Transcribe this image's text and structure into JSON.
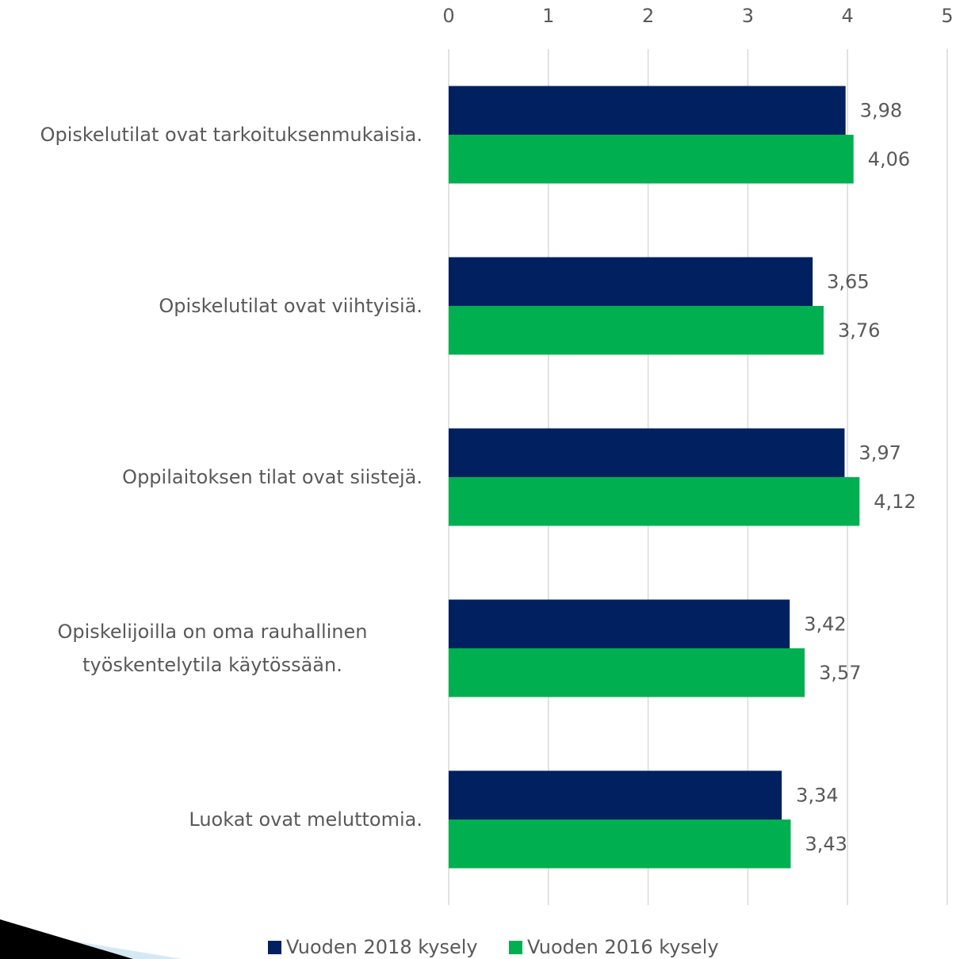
{
  "chart_data": {
    "type": "bar",
    "orientation": "horizontal",
    "categories": [
      "Opiskelutilat ovat tarkoituksenmukaisia.",
      "Opiskelutilat ovat viihtyisiä.",
      "Oppilaitoksen tilat ovat siistejä.",
      "Opiskelijoilla on oma rauhallinen työskentelytila käytössään.",
      "Luokat ovat meluttomia."
    ],
    "series": [
      {
        "name": "Vuoden 2018 kysely",
        "color": "#002060",
        "values": [
          3.98,
          3.65,
          3.97,
          3.42,
          3.34
        ],
        "value_labels": [
          "3,98",
          "3,65",
          "3,97",
          "3,42",
          "3,34"
        ]
      },
      {
        "name": "Vuoden 2016 kysely",
        "color": "#00b050",
        "values": [
          4.06,
          3.76,
          4.12,
          3.57,
          3.43
        ],
        "value_labels": [
          "4,06",
          "3,76",
          "4,12",
          "3,57",
          "3,43"
        ]
      }
    ],
    "xlim": [
      0,
      5
    ],
    "xticks": [
      0,
      1,
      2,
      3,
      4,
      5
    ],
    "grid": true,
    "legend": "bottom"
  }
}
